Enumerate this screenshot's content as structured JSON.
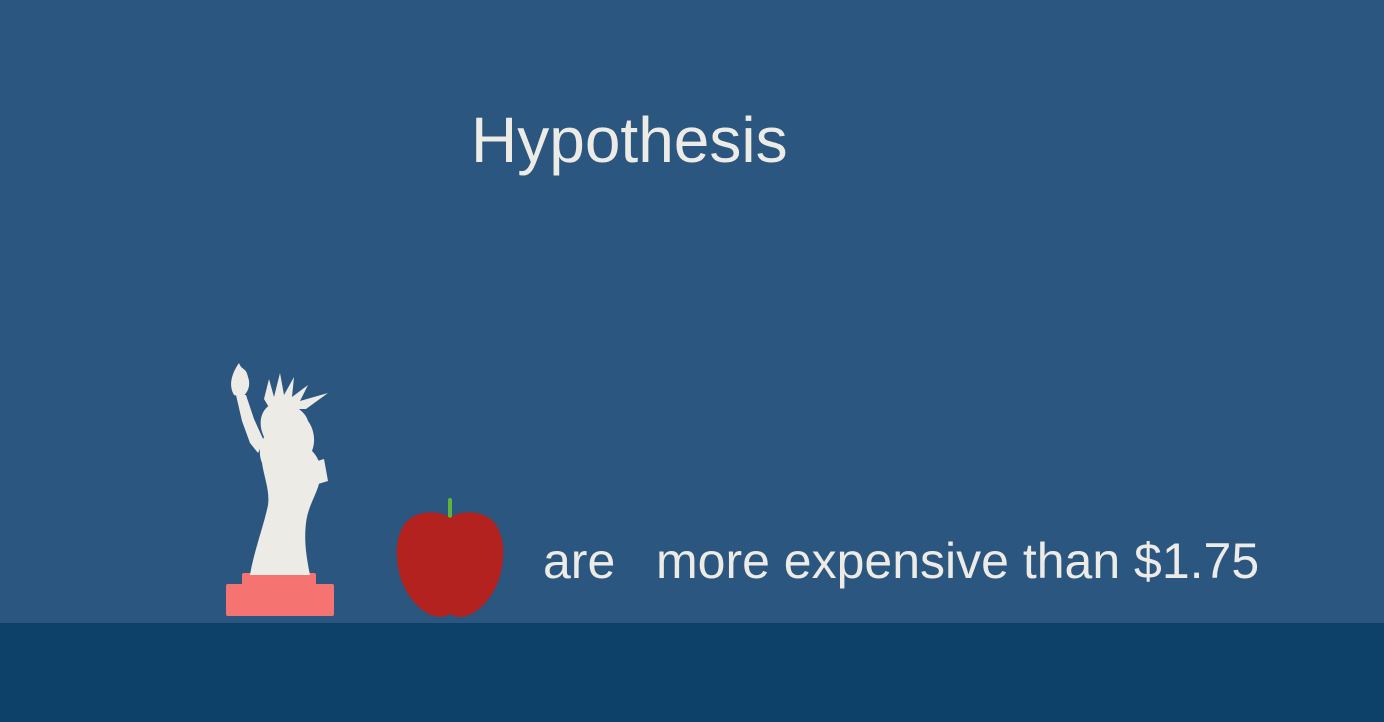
{
  "slide": {
    "title": "Hypothesis",
    "caption": {
      "subject_word": "are",
      "rest": "more expensive than $1.75"
    }
  },
  "icons": {
    "statue": "statue-of-liberty-icon",
    "apple": "apple-icon"
  },
  "colors": {
    "background": "#2b5680",
    "floor": "#0e416a",
    "text": "#ecebe5",
    "statue": "#ecebe5",
    "pedestal": "#f57472",
    "apple": "#b3221f",
    "apple_stem": "#5cb53a"
  }
}
